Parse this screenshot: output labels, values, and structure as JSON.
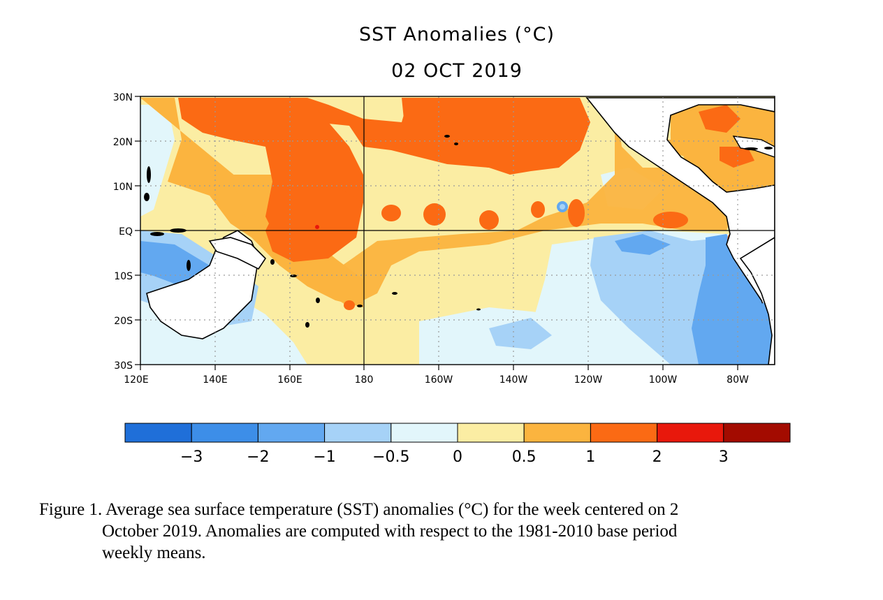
{
  "title": "SST Anomalies (°C)",
  "subtitle": "02 OCT 2019",
  "map": {
    "region": "Tropical Pacific Ocean",
    "lon_range": [
      "120E",
      "70W"
    ],
    "lat_range": [
      "30S",
      "30N"
    ],
    "lat_ticks": [
      "30N",
      "20N",
      "10N",
      "EQ",
      "10S",
      "20S",
      "30S"
    ],
    "lon_ticks": [
      "120E",
      "140E",
      "160E",
      "180",
      "160W",
      "140W",
      "120W",
      "100W",
      "80W"
    ],
    "grid": "dotted",
    "reference_lines": [
      "EQ",
      "180"
    ]
  },
  "colorbar": {
    "labels": [
      "−3",
      "−2",
      "−1",
      "−0.5",
      "0",
      "0.5",
      "1",
      "2",
      "3"
    ],
    "colors": [
      "#1f6fd9",
      "#3d8ee8",
      "#62a8f0",
      "#a6d2f7",
      "#e2f6fb",
      "#fbeda3",
      "#fbb43f",
      "#fb6a14",
      "#e8180c",
      "#a30b00"
    ]
  },
  "caption": {
    "line1": "Figure 1. Average sea surface temperature (SST) anomalies (°C) for the week centered on 2",
    "line2": "October 2019.  Anomalies are computed with respect to the 1981-2010 base period",
    "line3": "weekly means."
  }
}
